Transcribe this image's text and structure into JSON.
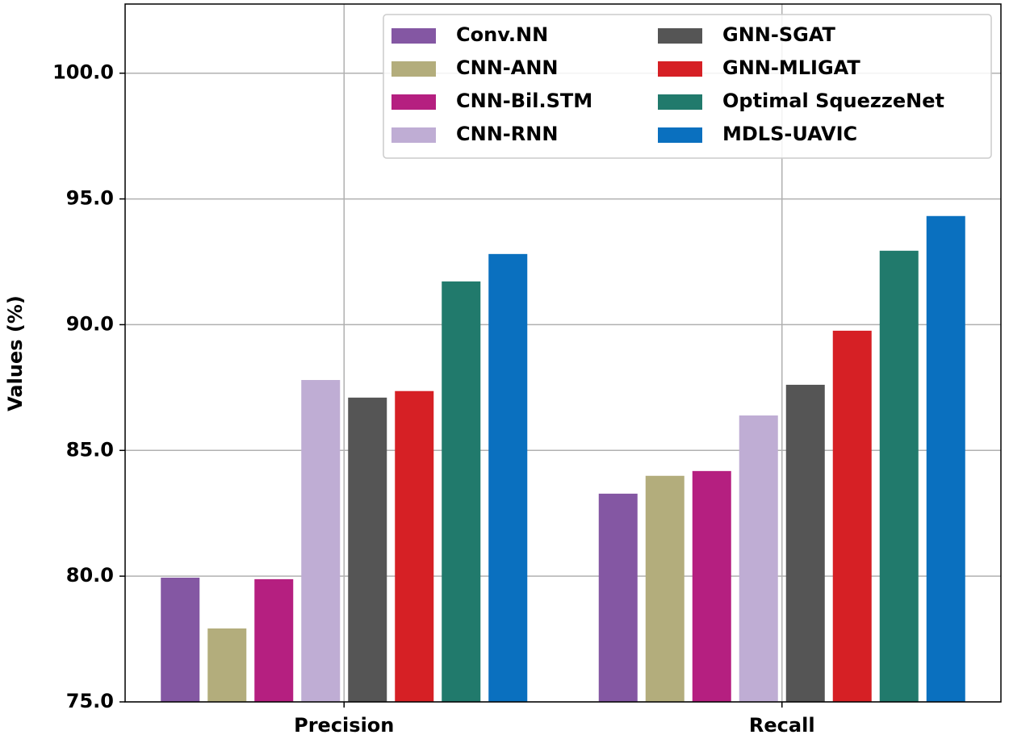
{
  "chart_data": {
    "type": "bar",
    "y_label": "Values (%)",
    "categories": [
      "Precision",
      "Recall"
    ],
    "series": [
      {
        "name": "Conv.NN",
        "color": "#8457a3",
        "values": [
          79.94,
          83.28
        ]
      },
      {
        "name": "CNN-ANN",
        "color": "#b3ad7c",
        "values": [
          77.92,
          83.99
        ]
      },
      {
        "name": "CNN-Bil.STM",
        "color": "#b51f80",
        "values": [
          79.88,
          84.18
        ]
      },
      {
        "name": "CNN-RNN",
        "color": "#bfadd4",
        "values": [
          87.8,
          86.39
        ]
      },
      {
        "name": "GNN-SGAT",
        "color": "#555555",
        "values": [
          87.1,
          87.61
        ]
      },
      {
        "name": "GNN-MLIGAT",
        "color": "#d62025",
        "values": [
          87.36,
          89.76
        ]
      },
      {
        "name": "Optimal SquezzeNet",
        "color": "#217a6c",
        "values": [
          91.72,
          92.94
        ]
      },
      {
        "name": "MDLS-UAVIC",
        "color": "#0a70bf",
        "values": [
          92.81,
          94.32
        ]
      }
    ],
    "ylim": [
      75,
      102.75
    ],
    "yticks": [
      {
        "value": 75,
        "label": "75.0"
      },
      {
        "value": 80,
        "label": "80.0"
      },
      {
        "value": 85,
        "label": "85.0"
      },
      {
        "value": 90,
        "label": "90.0"
      },
      {
        "value": 95,
        "label": "95.0"
      },
      {
        "value": 100,
        "label": "100.0"
      }
    ],
    "grid": true,
    "legend": "upper right"
  }
}
